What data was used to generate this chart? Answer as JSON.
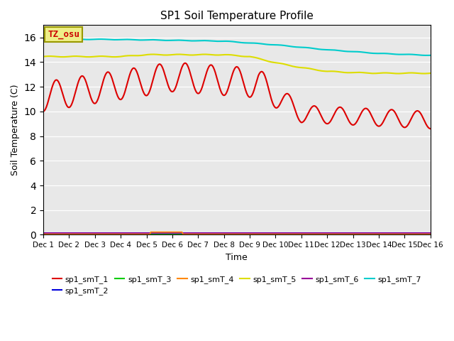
{
  "title": "SP1 Soil Temperature Profile",
  "xlabel": "Time",
  "ylabel": "Soil Temperature (C)",
  "annotation_text": "TZ_osu",
  "annotation_color": "#cc0000",
  "annotation_bg": "#eeee88",
  "annotation_edge": "#999900",
  "xlim": [
    0,
    360
  ],
  "ylim": [
    0,
    17
  ],
  "yticks": [
    0,
    2,
    4,
    6,
    8,
    10,
    12,
    14,
    16
  ],
  "xtick_labels": [
    "Dec 1",
    "Dec 2",
    "Dec 3",
    "Dec 4",
    "Dec 5",
    "Dec 6",
    "Dec 7",
    "Dec 8",
    "Dec 9",
    "Dec 10",
    "Dec 11",
    "Dec 12",
    "Dec 13",
    "Dec 14",
    "Dec 15",
    "Dec 16"
  ],
  "bg_color": "#e8e8e8",
  "legend_entries": [
    {
      "label": "sp1_smT_1",
      "color": "#dd0000"
    },
    {
      "label": "sp1_smT_2",
      "color": "#0000dd"
    },
    {
      "label": "sp1_smT_3",
      "color": "#00cc00"
    },
    {
      "label": "sp1_smT_4",
      "color": "#ff8800"
    },
    {
      "label": "sp1_smT_5",
      "color": "#dddd00"
    },
    {
      "label": "sp1_smT_6",
      "color": "#990099"
    },
    {
      "label": "sp1_smT_7",
      "color": "#00cccc"
    }
  ]
}
